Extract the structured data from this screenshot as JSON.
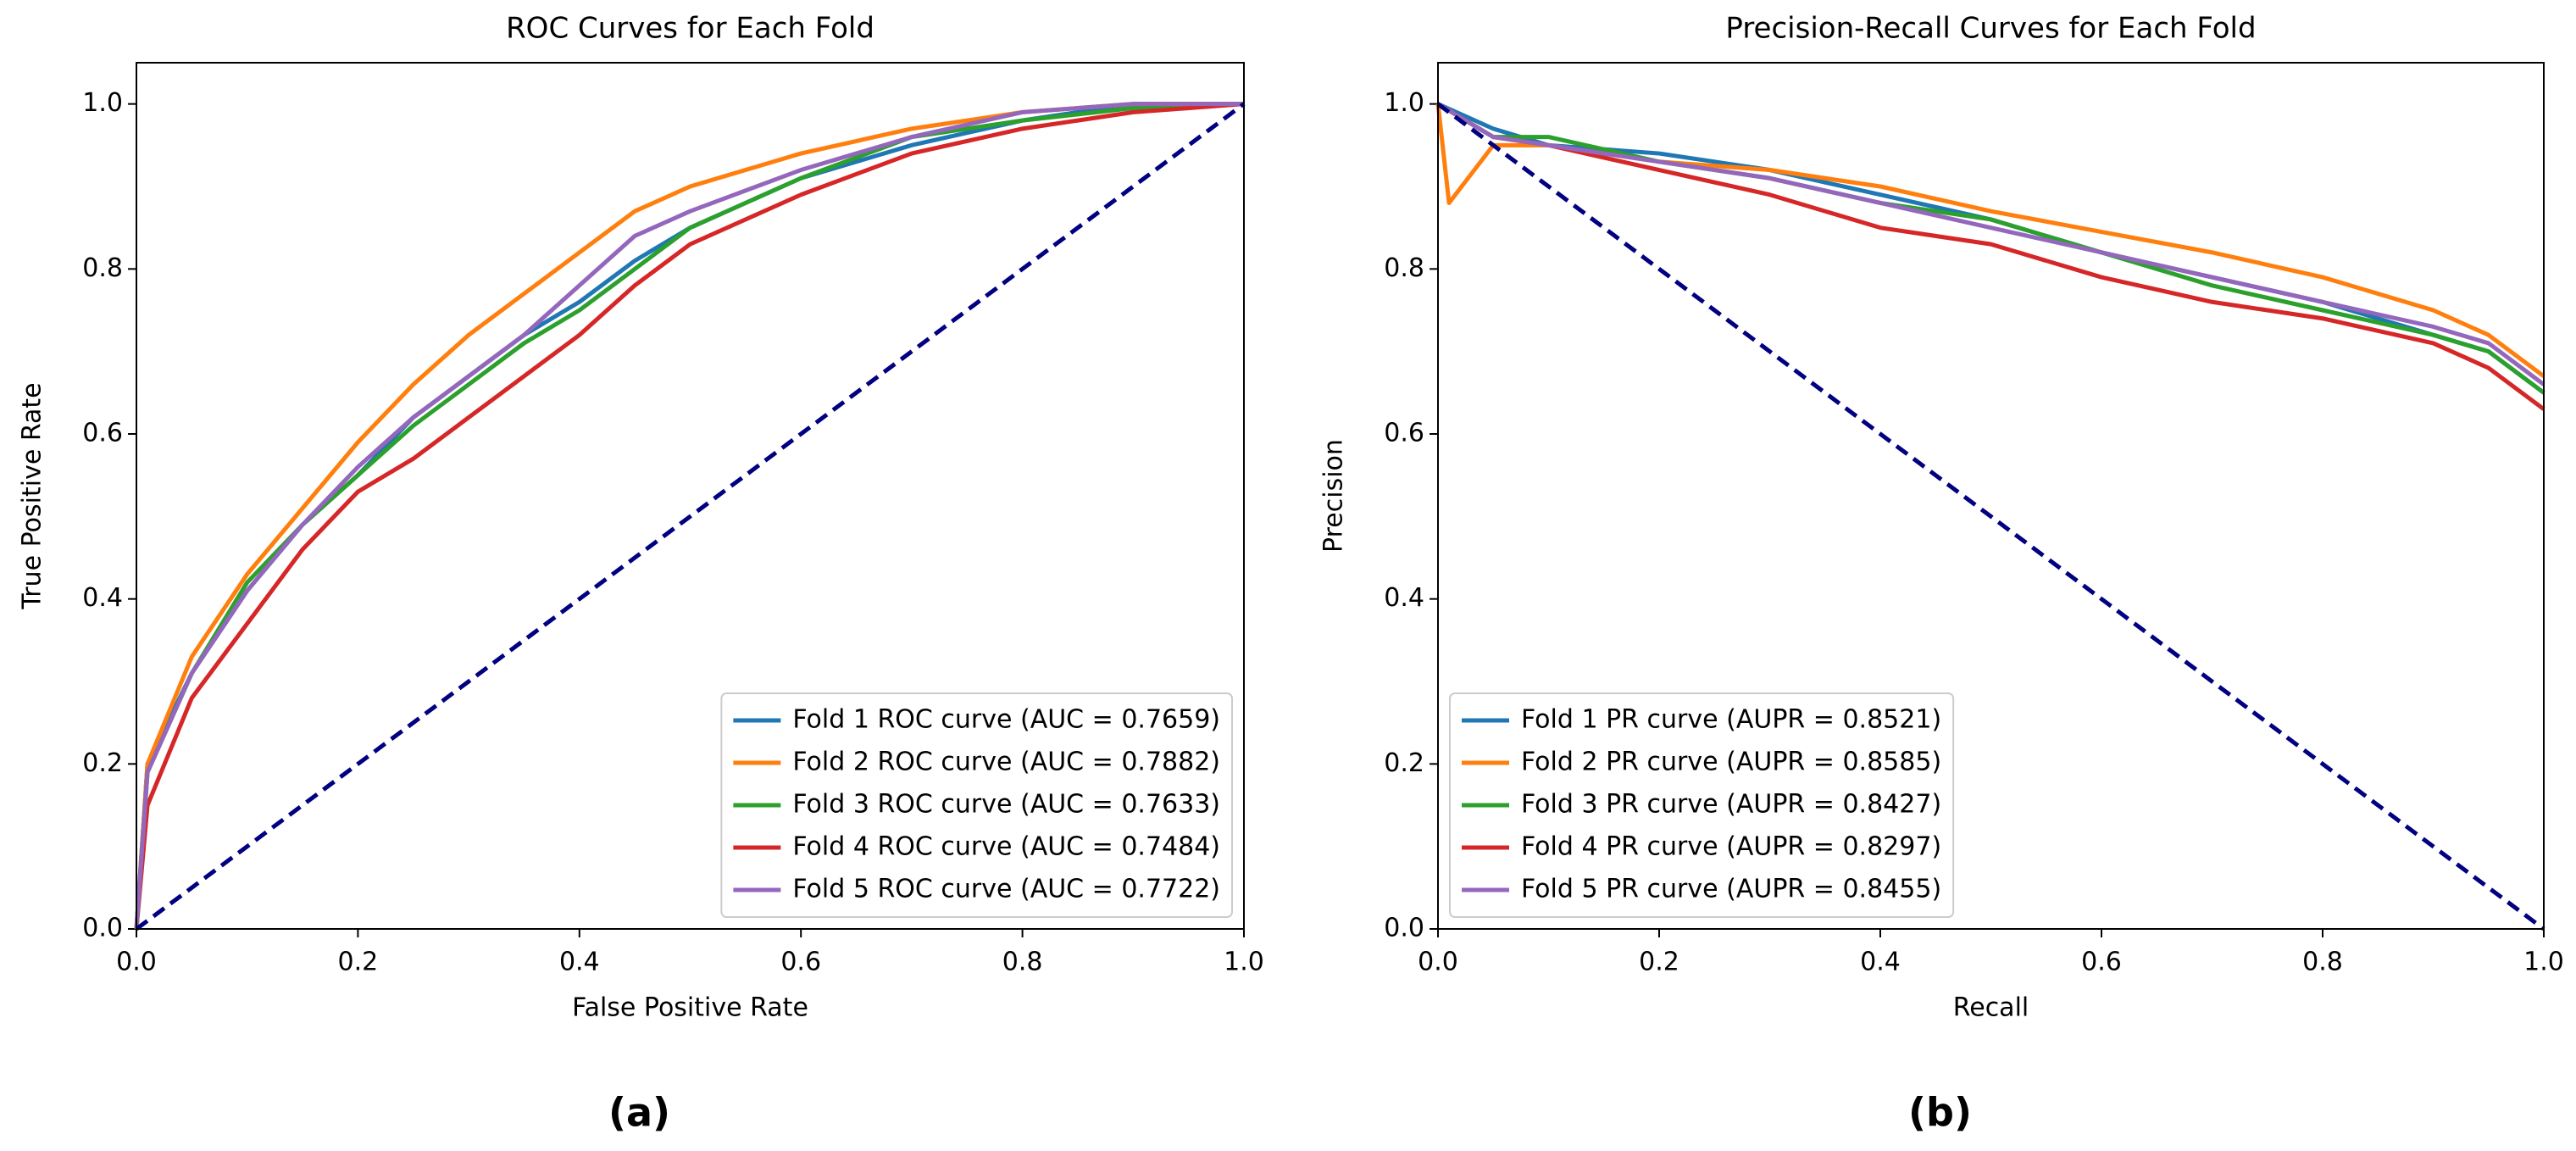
{
  "chart_data": [
    {
      "type": "line",
      "title": "ROC Curves for Each Fold",
      "xlabel": "False Positive Rate",
      "ylabel": "True Positive Rate",
      "caption": "(a)",
      "xlim": [
        0,
        1
      ],
      "ylim": [
        0,
        1.05
      ],
      "xticks": [
        {
          "value": 0,
          "label": "0.0"
        },
        0.2,
        0.4,
        0.6,
        0.8,
        {
          "value": 1,
          "label": "1.0"
        }
      ],
      "yticks": [
        {
          "value": 0,
          "label": "0.0"
        },
        0.2,
        0.4,
        0.6,
        0.8,
        {
          "value": 1,
          "label": "1.0"
        }
      ],
      "legend": "lower right",
      "series": [
        {
          "name": "Fold 1 ROC curve (AUC = 0.7659)",
          "color": "#1f77b4",
          "x": [
            0,
            0.01,
            0.05,
            0.1,
            0.15,
            0.2,
            0.25,
            0.3,
            0.35,
            0.4,
            0.45,
            0.5,
            0.6,
            0.7,
            0.8,
            0.9,
            1
          ],
          "values": [
            0,
            0.2,
            0.31,
            0.41,
            0.49,
            0.55,
            0.62,
            0.67,
            0.72,
            0.76,
            0.81,
            0.85,
            0.91,
            0.95,
            0.98,
            1.0,
            1.0
          ]
        },
        {
          "name": "Fold 2 ROC curve (AUC = 0.7882)",
          "color": "#ff7f0e",
          "x": [
            0,
            0.01,
            0.05,
            0.1,
            0.15,
            0.2,
            0.25,
            0.3,
            0.35,
            0.4,
            0.45,
            0.5,
            0.6,
            0.7,
            0.8,
            0.9,
            1
          ],
          "values": [
            0,
            0.2,
            0.33,
            0.43,
            0.51,
            0.59,
            0.66,
            0.72,
            0.77,
            0.82,
            0.87,
            0.9,
            0.94,
            0.97,
            0.99,
            1.0,
            1.0
          ]
        },
        {
          "name": "Fold 3 ROC curve (AUC = 0.7633)",
          "color": "#2ca02c",
          "x": [
            0,
            0.01,
            0.05,
            0.1,
            0.15,
            0.2,
            0.25,
            0.3,
            0.35,
            0.4,
            0.45,
            0.5,
            0.6,
            0.7,
            0.8,
            0.9,
            1
          ],
          "values": [
            0,
            0.19,
            0.31,
            0.42,
            0.49,
            0.55,
            0.61,
            0.66,
            0.71,
            0.75,
            0.8,
            0.85,
            0.91,
            0.96,
            0.98,
            0.995,
            1.0
          ]
        },
        {
          "name": "Fold 4 ROC curve (AUC = 0.7484)",
          "color": "#d62728",
          "x": [
            0,
            0.01,
            0.05,
            0.1,
            0.15,
            0.2,
            0.25,
            0.3,
            0.35,
            0.4,
            0.45,
            0.5,
            0.6,
            0.7,
            0.8,
            0.9,
            1
          ],
          "values": [
            0,
            0.15,
            0.28,
            0.37,
            0.46,
            0.53,
            0.57,
            0.62,
            0.67,
            0.72,
            0.78,
            0.83,
            0.89,
            0.94,
            0.97,
            0.99,
            1.0
          ]
        },
        {
          "name": "Fold 5 ROC curve (AUC = 0.7722)",
          "color": "#9467bd",
          "x": [
            0,
            0.01,
            0.05,
            0.1,
            0.15,
            0.2,
            0.25,
            0.3,
            0.35,
            0.4,
            0.45,
            0.5,
            0.6,
            0.7,
            0.8,
            0.9,
            1
          ],
          "values": [
            0,
            0.19,
            0.31,
            0.41,
            0.49,
            0.56,
            0.62,
            0.67,
            0.72,
            0.78,
            0.84,
            0.87,
            0.92,
            0.96,
            0.99,
            1.0,
            1.0
          ]
        },
        {
          "color": "#000080",
          "dashed": true,
          "x": [
            0,
            1
          ],
          "values": [
            0,
            1
          ]
        }
      ]
    },
    {
      "type": "line",
      "title": "Precision-Recall Curves for Each Fold",
      "xlabel": "Recall",
      "ylabel": "Precision",
      "caption": "(b)",
      "xlim": [
        0,
        1
      ],
      "ylim": [
        0,
        1.05
      ],
      "xticks": [
        {
          "value": 0,
          "label": "0.0"
        },
        0.2,
        0.4,
        0.6,
        0.8,
        {
          "value": 1,
          "label": "1.0"
        }
      ],
      "yticks": [
        {
          "value": 0,
          "label": "0.0"
        },
        0.2,
        0.4,
        0.6,
        0.8,
        {
          "value": 1,
          "label": "1.0"
        }
      ],
      "legend": "lower left",
      "series": [
        {
          "name": "Fold 1 PR curve (AUPR = 0.8521)",
          "color": "#1f77b4",
          "x": [
            0,
            0.05,
            0.1,
            0.2,
            0.3,
            0.4,
            0.5,
            0.6,
            0.7,
            0.8,
            0.9,
            0.95,
            1
          ],
          "values": [
            1,
            0.97,
            0.95,
            0.94,
            0.92,
            0.89,
            0.86,
            0.82,
            0.79,
            0.76,
            0.72,
            0.7,
            0.65
          ]
        },
        {
          "name": "Fold 2 PR curve (AUPR = 0.8585)",
          "color": "#ff7f0e",
          "x": [
            0,
            0.01,
            0.05,
            0.1,
            0.2,
            0.3,
            0.4,
            0.5,
            0.6,
            0.7,
            0.8,
            0.9,
            0.95,
            1
          ],
          "values": [
            1,
            0.88,
            0.95,
            0.95,
            0.93,
            0.92,
            0.9,
            0.87,
            0.845,
            0.82,
            0.79,
            0.75,
            0.72,
            0.67
          ]
        },
        {
          "name": "Fold 3 PR curve (AUPR = 0.8427)",
          "color": "#2ca02c",
          "x": [
            0,
            0.05,
            0.1,
            0.2,
            0.3,
            0.4,
            0.5,
            0.6,
            0.7,
            0.8,
            0.9,
            0.95,
            1
          ],
          "values": [
            1,
            0.96,
            0.96,
            0.93,
            0.91,
            0.88,
            0.86,
            0.82,
            0.78,
            0.75,
            0.72,
            0.7,
            0.65
          ]
        },
        {
          "name": "Fold 4 PR curve (AUPR = 0.8297)",
          "color": "#d62728",
          "x": [
            0,
            0.05,
            0.1,
            0.2,
            0.3,
            0.4,
            0.5,
            0.6,
            0.7,
            0.8,
            0.9,
            0.95,
            1
          ],
          "values": [
            1,
            0.96,
            0.95,
            0.92,
            0.89,
            0.85,
            0.83,
            0.79,
            0.76,
            0.74,
            0.71,
            0.68,
            0.63
          ]
        },
        {
          "name": "Fold 5 PR curve (AUPR = 0.8455)",
          "color": "#9467bd",
          "x": [
            0,
            0.05,
            0.1,
            0.2,
            0.3,
            0.4,
            0.5,
            0.6,
            0.7,
            0.8,
            0.9,
            0.95,
            1
          ],
          "values": [
            1,
            0.96,
            0.95,
            0.93,
            0.91,
            0.88,
            0.85,
            0.82,
            0.79,
            0.76,
            0.73,
            0.71,
            0.66
          ]
        },
        {
          "color": "#000080",
          "dashed": true,
          "x": [
            0,
            1
          ],
          "values": [
            1,
            0
          ]
        }
      ]
    }
  ]
}
